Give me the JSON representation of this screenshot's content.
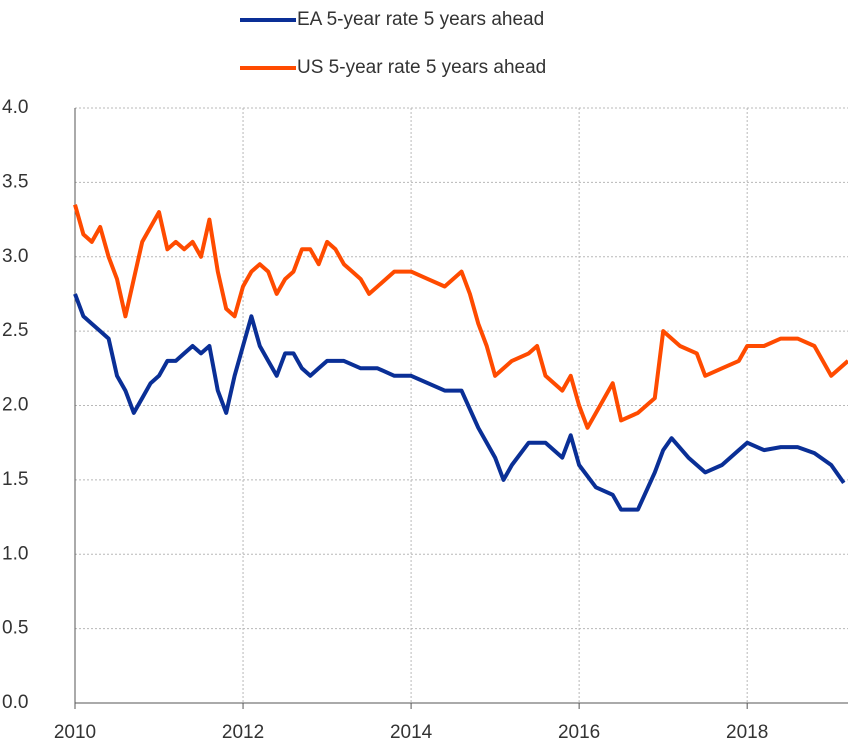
{
  "chart_data": {
    "type": "line",
    "series": [
      {
        "name": "EA 5-year rate 5 years ahead",
        "color": "#0a2f96",
        "x": [
          2010.0,
          2010.1,
          2010.2,
          2010.3,
          2010.4,
          2010.5,
          2010.6,
          2010.7,
          2010.8,
          2010.9,
          2011.0,
          2011.1,
          2011.2,
          2011.3,
          2011.4,
          2011.5,
          2011.6,
          2011.7,
          2011.8,
          2011.9,
          2012.0,
          2012.1,
          2012.2,
          2012.3,
          2012.4,
          2012.5,
          2012.6,
          2012.7,
          2012.8,
          2012.9,
          2013.0,
          2013.2,
          2013.4,
          2013.6,
          2013.8,
          2014.0,
          2014.2,
          2014.4,
          2014.6,
          2014.8,
          2015.0,
          2015.1,
          2015.2,
          2015.4,
          2015.6,
          2015.8,
          2015.9,
          2016.0,
          2016.2,
          2016.4,
          2016.5,
          2016.7,
          2016.9,
          2017.0,
          2017.1,
          2017.3,
          2017.5,
          2017.7,
          2017.9,
          2018.0,
          2018.2,
          2018.4,
          2018.6,
          2018.8,
          2019.0,
          2019.15
        ],
        "values": [
          2.75,
          2.6,
          2.55,
          2.5,
          2.45,
          2.2,
          2.1,
          1.95,
          2.05,
          2.15,
          2.2,
          2.3,
          2.3,
          2.35,
          2.4,
          2.35,
          2.4,
          2.1,
          1.95,
          2.2,
          2.4,
          2.6,
          2.4,
          2.3,
          2.2,
          2.35,
          2.35,
          2.25,
          2.2,
          2.25,
          2.3,
          2.3,
          2.25,
          2.25,
          2.2,
          2.2,
          2.15,
          2.1,
          2.1,
          1.85,
          1.65,
          1.5,
          1.6,
          1.75,
          1.75,
          1.65,
          1.8,
          1.6,
          1.45,
          1.4,
          1.3,
          1.3,
          1.55,
          1.7,
          1.78,
          1.65,
          1.55,
          1.6,
          1.7,
          1.75,
          1.7,
          1.72,
          1.72,
          1.68,
          1.6,
          1.48
        ]
      },
      {
        "name": "US 5-year rate 5 years ahead",
        "color": "#ff4b00",
        "x": [
          2010.0,
          2010.1,
          2010.2,
          2010.3,
          2010.4,
          2010.5,
          2010.6,
          2010.7,
          2010.8,
          2010.9,
          2011.0,
          2011.1,
          2011.2,
          2011.3,
          2011.4,
          2011.5,
          2011.6,
          2011.7,
          2011.8,
          2011.9,
          2012.0,
          2012.1,
          2012.2,
          2012.3,
          2012.4,
          2012.5,
          2012.6,
          2012.7,
          2012.8,
          2012.9,
          2013.0,
          2013.1,
          2013.2,
          2013.3,
          2013.4,
          2013.5,
          2013.6,
          2013.8,
          2014.0,
          2014.2,
          2014.4,
          2014.6,
          2014.7,
          2014.8,
          2014.9,
          2015.0,
          2015.2,
          2015.4,
          2015.5,
          2015.6,
          2015.8,
          2015.9,
          2016.0,
          2016.1,
          2016.3,
          2016.4,
          2016.5,
          2016.7,
          2016.9,
          2017.0,
          2017.2,
          2017.4,
          2017.5,
          2017.7,
          2017.9,
          2018.0,
          2018.2,
          2018.4,
          2018.6,
          2018.8,
          2019.0,
          2019.2
        ],
        "values": [
          3.35,
          3.15,
          3.1,
          3.2,
          3.0,
          2.85,
          2.6,
          2.85,
          3.1,
          3.2,
          3.3,
          3.05,
          3.1,
          3.05,
          3.1,
          3.0,
          3.25,
          2.9,
          2.65,
          2.6,
          2.8,
          2.9,
          2.95,
          2.9,
          2.75,
          2.85,
          2.9,
          3.05,
          3.05,
          2.95,
          3.1,
          3.05,
          2.95,
          2.9,
          2.85,
          2.75,
          2.8,
          2.9,
          2.9,
          2.85,
          2.8,
          2.9,
          2.75,
          2.55,
          2.4,
          2.2,
          2.3,
          2.35,
          2.4,
          2.2,
          2.1,
          2.2,
          2.0,
          1.85,
          2.05,
          2.15,
          1.9,
          1.95,
          2.05,
          2.5,
          2.4,
          2.35,
          2.2,
          2.25,
          2.3,
          2.4,
          2.4,
          2.45,
          2.45,
          2.4,
          2.2,
          2.3
        ]
      }
    ],
    "xlim": [
      2010,
      2019.2
    ],
    "xticks": [
      2010,
      2012,
      2014,
      2016,
      2018
    ],
    "ylim": [
      0,
      4
    ],
    "yticks": [
      {
        "value": 0,
        "label": "0.0"
      },
      0.5,
      {
        "value": 1,
        "label": "1.0"
      },
      1.5,
      {
        "value": 2,
        "label": "2.0"
      },
      2.5,
      {
        "value": 3,
        "label": "3.0"
      },
      3.5,
      {
        "value": 4,
        "label": "4.0"
      }
    ],
    "grid": true,
    "legend": "top"
  }
}
